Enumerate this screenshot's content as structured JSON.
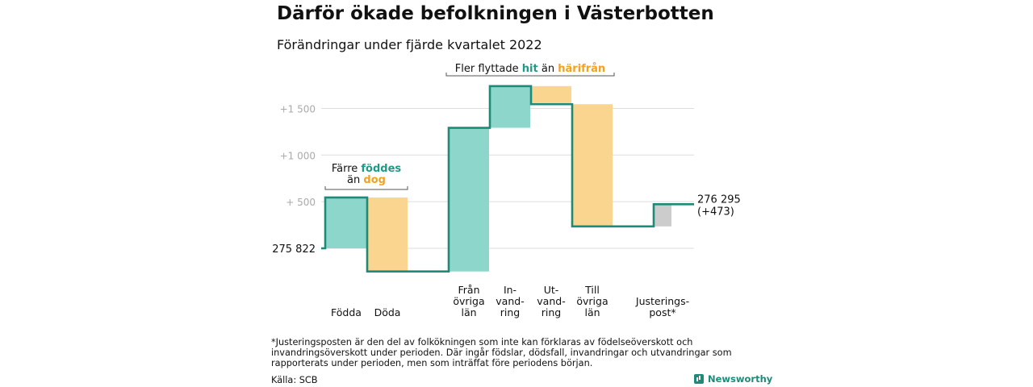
{
  "title": "Därför ökade befolkningen i Västerbotten",
  "subtitle": "Förändringar under fjärde kvartalet 2022",
  "chart_data": {
    "type": "waterfall",
    "base_value": 275822,
    "base_label": "275 822",
    "end_value": 276295,
    "end_label": "276 295",
    "end_change_label": "(+473)",
    "y_ticks": [
      {
        "value": 500,
        "label": "+ 500"
      },
      {
        "value": 1000,
        "label": "+1 000"
      },
      {
        "value": 1500,
        "label": "+1 500"
      }
    ],
    "steps": [
      {
        "category": "Födda",
        "label_lines": [
          "Födda"
        ],
        "value": 545,
        "kind": "inflow"
      },
      {
        "category": "Döda",
        "label_lines": [
          "Döda"
        ],
        "value": -793,
        "kind": "outflow"
      },
      {
        "category": "Från övriga län",
        "label_lines": [
          "Från",
          "övriga",
          "län"
        ],
        "value": 1540,
        "kind": "inflow"
      },
      {
        "category": "Invandring",
        "label_lines": [
          "In-",
          "vand-",
          "ring"
        ],
        "value": 447,
        "kind": "inflow"
      },
      {
        "category": "Utvandring",
        "label_lines": [
          "Ut-",
          "vand-",
          "ring"
        ],
        "value": -194,
        "kind": "outflow"
      },
      {
        "category": "Till övriga län",
        "label_lines": [
          "Till",
          "övriga",
          "län"
        ],
        "value": -1310,
        "kind": "outflow"
      },
      {
        "category": "Justeringspost*",
        "label_lines": [
          "Justerings-",
          "post*"
        ],
        "value": 238,
        "kind": "adjustment"
      }
    ],
    "annotations": [
      {
        "id": "births",
        "text_parts": [
          {
            "text": "Färre ",
            "color": "dark"
          },
          {
            "text": "föddes",
            "color": "teal"
          }
        ],
        "line2_parts": [
          {
            "text": "än ",
            "color": "dark"
          },
          {
            "text": "dog",
            "color": "orange"
          }
        ]
      },
      {
        "id": "migration",
        "text_parts": [
          {
            "text": "Fler flyttade ",
            "color": "dark"
          },
          {
            "text": "hit",
            "color": "teal"
          },
          {
            "text": " än ",
            "color": "dark"
          },
          {
            "text": "härifrån",
            "color": "orange"
          }
        ]
      }
    ],
    "grid": true,
    "colors": {
      "inflow": "#8dd6cc",
      "outflow": "#fad58f",
      "adjustment": "#cccccc",
      "line": "#1f8a78",
      "teal_text": "#1f9a86",
      "orange_text": "#f2a21e"
    }
  },
  "footnote": "*Justeringsposten är den del av folkökningen som inte kan förklaras av födelseöverskott och invandringsöverskott under perioden. Där ingår födslar, dödsfall, invandringar och utvandringar som rapporterats under perioden, men som inträffat före periodens början.",
  "source": "Källa: SCB",
  "brand": "Newsworthy"
}
